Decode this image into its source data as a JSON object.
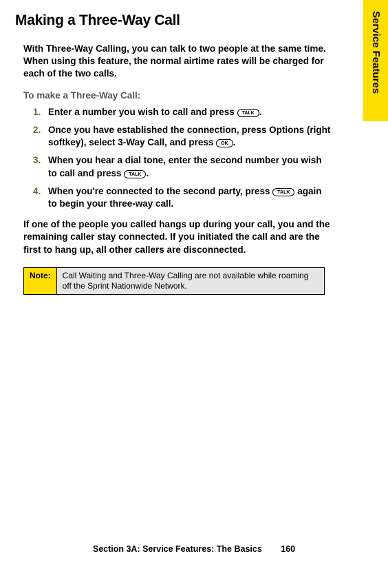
{
  "sideTab": "Service Features",
  "title": "Making a Three-Way Call",
  "intro": "With Three-Way Calling, you can talk to two people at the same time. When using this feature, the normal airtime rates will be charged for each of the two calls.",
  "subhead": "To make a Three-Way Call:",
  "steps": {
    "s1_a": "Enter a number you wish to call and press ",
    "s1_key": "TALK",
    "s1_b": ".",
    "s2_a": "Once you have established the connection, press ",
    "s2_opt": "Options",
    "s2_b": " (right softkey), select ",
    "s2_3way": "3-Way Call",
    "s2_c": ", and press ",
    "s2_key": "OK",
    "s2_d": ".",
    "s3_a": "When you hear a dial tone, enter the second number you wish to call and press ",
    "s3_key": "TALK",
    "s3_b": ".",
    "s4_a": "When you're connected to the second party, press ",
    "s4_key": "TALK",
    "s4_b": " again to begin your three-way call."
  },
  "after": "If one of the people you called hangs up during your call, you and the remaining caller stay connected. If you initiated the call and are the first to hang up, all other callers are disconnected.",
  "noteLabel": "Note:",
  "noteText": "Call Waiting and Three-Way Calling are not available while roaming off the Sprint Nationwide Network.",
  "footerSection": "Section 3A: Service Features: The Basics",
  "footerPage": "160",
  "colors": {
    "accent": "#ffde00",
    "stepNum": "#666633",
    "noteBg": "#e6e6e6"
  }
}
